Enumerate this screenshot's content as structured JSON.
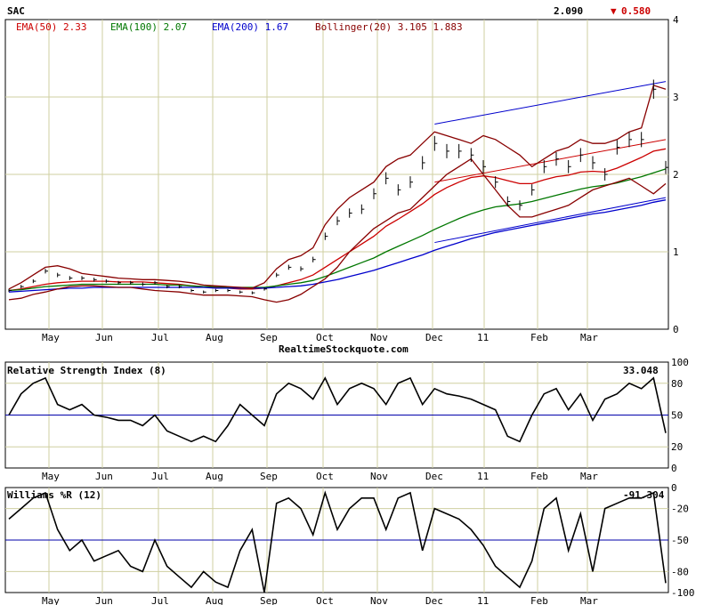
{
  "header": {
    "symbol": "SAC",
    "last_price": "2.090",
    "change": "0.580",
    "change_direction": "down",
    "down_color": "#cc0000"
  },
  "watermark": "RealtimeStockquote.com",
  "x_tick_labels": [
    "May",
    "Jun",
    "Jul",
    "Aug",
    "Sep",
    "Oct",
    "Nov",
    "Dec",
    "11",
    "Feb",
    "Mar"
  ],
  "chart_data": [
    {
      "type": "line",
      "title": "",
      "ylim": [
        0,
        4
      ],
      "y_ticks": [
        "0",
        "1",
        "2",
        "3",
        "4"
      ],
      "legend": [
        {
          "label": "EMA(50) 2.33",
          "color": "#cc0000"
        },
        {
          "label": "EMA(100) 2.07",
          "color": "#007700"
        },
        {
          "label": "EMA(200) 1.67",
          "color": "#0000cc"
        },
        {
          "label": "Bollinger(20) 3.105 1.883",
          "color": "#880000"
        }
      ],
      "x_weeks": [
        0,
        1,
        2,
        3,
        4,
        5,
        6,
        7,
        8,
        9,
        10,
        11,
        12,
        13,
        14,
        15,
        16,
        17,
        18,
        19,
        20,
        21,
        22,
        23,
        24,
        25,
        26,
        27,
        28,
        29,
        30,
        31,
        32,
        33,
        34,
        35,
        36,
        37,
        38,
        39,
        40,
        41,
        42,
        43,
        44,
        45,
        46,
        47,
        48,
        49,
        50,
        51,
        52,
        53,
        54
      ],
      "price": [
        0.5,
        0.55,
        0.62,
        0.75,
        0.7,
        0.66,
        0.66,
        0.64,
        0.62,
        0.6,
        0.6,
        0.58,
        0.6,
        0.55,
        0.55,
        0.5,
        0.48,
        0.5,
        0.5,
        0.48,
        0.47,
        0.52,
        0.7,
        0.8,
        0.78,
        0.9,
        1.2,
        1.4,
        1.5,
        1.55,
        1.75,
        1.95,
        1.8,
        1.9,
        2.15,
        2.4,
        2.3,
        2.3,
        2.25,
        2.1,
        1.9,
        1.65,
        1.6,
        1.8,
        2.1,
        2.2,
        2.1,
        2.25,
        2.15,
        2.0,
        2.35,
        2.45,
        2.45,
        3.1,
        2.09
      ],
      "series": [
        {
          "name": "EMA(50)",
          "color": "#cc0000",
          "values": [
            0.5,
            0.52,
            0.55,
            0.58,
            0.6,
            0.61,
            0.62,
            0.62,
            0.62,
            0.61,
            0.61,
            0.61,
            0.6,
            0.59,
            0.58,
            0.56,
            0.55,
            0.54,
            0.53,
            0.52,
            0.52,
            0.53,
            0.56,
            0.6,
            0.64,
            0.7,
            0.8,
            0.9,
            1.0,
            1.1,
            1.2,
            1.33,
            1.42,
            1.52,
            1.62,
            1.74,
            1.83,
            1.9,
            1.96,
            1.98,
            1.96,
            1.92,
            1.88,
            1.88,
            1.93,
            1.97,
            1.99,
            2.03,
            2.04,
            2.03,
            2.08,
            2.15,
            2.22,
            2.3,
            2.33
          ]
        },
        {
          "name": "EMA(100)",
          "color": "#007700",
          "values": [
            0.5,
            0.51,
            0.53,
            0.55,
            0.56,
            0.57,
            0.58,
            0.58,
            0.58,
            0.58,
            0.58,
            0.58,
            0.58,
            0.57,
            0.57,
            0.56,
            0.55,
            0.55,
            0.54,
            0.54,
            0.54,
            0.54,
            0.56,
            0.58,
            0.6,
            0.63,
            0.68,
            0.74,
            0.8,
            0.86,
            0.92,
            1.0,
            1.07,
            1.14,
            1.21,
            1.29,
            1.36,
            1.43,
            1.49,
            1.54,
            1.58,
            1.6,
            1.62,
            1.65,
            1.69,
            1.73,
            1.77,
            1.81,
            1.84,
            1.86,
            1.89,
            1.93,
            1.97,
            2.02,
            2.07
          ]
        },
        {
          "name": "EMA(200)",
          "color": "#0000cc",
          "values": [
            0.48,
            0.49,
            0.5,
            0.51,
            0.52,
            0.53,
            0.53,
            0.54,
            0.54,
            0.54,
            0.54,
            0.54,
            0.54,
            0.54,
            0.54,
            0.54,
            0.54,
            0.53,
            0.53,
            0.53,
            0.53,
            0.53,
            0.54,
            0.55,
            0.56,
            0.58,
            0.61,
            0.64,
            0.68,
            0.72,
            0.76,
            0.81,
            0.86,
            0.91,
            0.96,
            1.02,
            1.07,
            1.12,
            1.17,
            1.21,
            1.25,
            1.28,
            1.31,
            1.34,
            1.37,
            1.4,
            1.43,
            1.46,
            1.49,
            1.51,
            1.54,
            1.57,
            1.6,
            1.64,
            1.67
          ]
        },
        {
          "name": "Bollinger upper",
          "color": "#880000",
          "values": [
            0.52,
            0.6,
            0.7,
            0.8,
            0.82,
            0.78,
            0.72,
            0.7,
            0.68,
            0.66,
            0.65,
            0.64,
            0.64,
            0.63,
            0.62,
            0.6,
            0.57,
            0.56,
            0.55,
            0.54,
            0.53,
            0.6,
            0.78,
            0.9,
            0.95,
            1.05,
            1.35,
            1.55,
            1.7,
            1.8,
            1.9,
            2.1,
            2.2,
            2.25,
            2.4,
            2.55,
            2.5,
            2.45,
            2.4,
            2.5,
            2.45,
            2.35,
            2.25,
            2.1,
            2.2,
            2.3,
            2.35,
            2.45,
            2.4,
            2.4,
            2.45,
            2.55,
            2.6,
            3.15,
            3.1
          ]
        },
        {
          "name": "Bollinger lower",
          "color": "#880000",
          "values": [
            0.38,
            0.4,
            0.45,
            0.48,
            0.52,
            0.55,
            0.56,
            0.56,
            0.55,
            0.54,
            0.54,
            0.52,
            0.5,
            0.49,
            0.48,
            0.46,
            0.44,
            0.44,
            0.44,
            0.43,
            0.42,
            0.38,
            0.35,
            0.38,
            0.45,
            0.55,
            0.65,
            0.8,
            1.0,
            1.15,
            1.3,
            1.4,
            1.5,
            1.55,
            1.7,
            1.85,
            2.0,
            2.1,
            2.2,
            2.0,
            1.8,
            1.6,
            1.45,
            1.45,
            1.5,
            1.55,
            1.6,
            1.7,
            1.8,
            1.85,
            1.9,
            1.95,
            1.85,
            1.75,
            1.88
          ]
        }
      ],
      "trend_channel": {
        "x": [
          35,
          54
        ],
        "upper": [
          2.65,
          3.2
        ],
        "lower": [
          1.12,
          1.7
        ],
        "middle": [
          1.9,
          2.45
        ]
      }
    },
    {
      "type": "line",
      "title": "Relative Strength Index (8)",
      "last_value": "33.048",
      "ylim": [
        0,
        100
      ],
      "y_ticks": [
        "0",
        "20",
        "50",
        "80",
        "100"
      ],
      "reference_line": 50,
      "series": [
        {
          "name": "RSI",
          "color": "#000000",
          "values": [
            50,
            70,
            80,
            85,
            60,
            55,
            60,
            50,
            48,
            45,
            45,
            40,
            50,
            35,
            30,
            25,
            30,
            25,
            40,
            60,
            50,
            40,
            70,
            80,
            75,
            65,
            85,
            60,
            75,
            80,
            75,
            60,
            80,
            85,
            60,
            75,
            70,
            68,
            65,
            60,
            55,
            30,
            25,
            50,
            70,
            75,
            55,
            70,
            45,
            65,
            70,
            80,
            75,
            85,
            33
          ]
        }
      ]
    },
    {
      "type": "line",
      "title": "Williams %R (12)",
      "last_value": "-91.304",
      "ylim": [
        -100,
        0
      ],
      "y_ticks": [
        "0",
        "-20",
        "-50",
        "-80",
        "-100"
      ],
      "reference_line": -50,
      "series": [
        {
          "name": "Williams %R",
          "color": "#000000",
          "values": [
            -30,
            -20,
            -10,
            -5,
            -40,
            -60,
            -50,
            -70,
            -65,
            -60,
            -75,
            -80,
            -50,
            -75,
            -85,
            -95,
            -80,
            -90,
            -95,
            -60,
            -40,
            -100,
            -15,
            -10,
            -20,
            -45,
            -5,
            -40,
            -20,
            -10,
            -10,
            -40,
            -10,
            -5,
            -60,
            -20,
            -25,
            -30,
            -40,
            -55,
            -75,
            -85,
            -95,
            -70,
            -20,
            -10,
            -60,
            -25,
            -80,
            -20,
            -15,
            -10,
            -10,
            -5,
            -91
          ]
        }
      ]
    }
  ]
}
